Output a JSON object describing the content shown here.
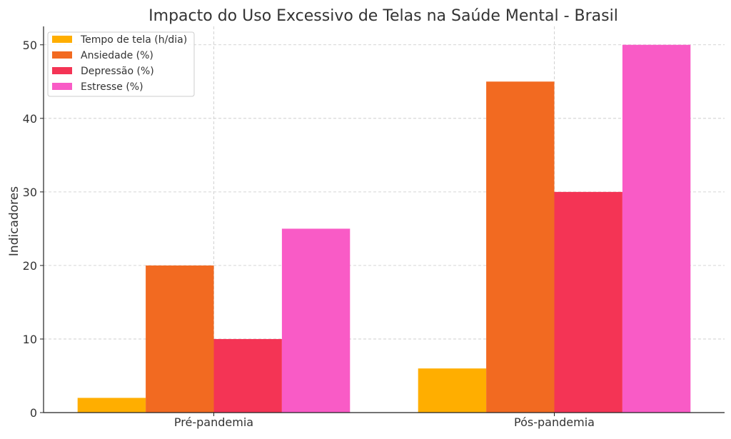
{
  "chart_data": {
    "type": "bar",
    "title": "Impacto do Uso Excessivo de Telas na Saúde Mental - Brasil",
    "xlabel": "",
    "ylabel": "Indicadores",
    "categories": [
      "Pré-pandemia",
      "Pós-pandemia"
    ],
    "series": [
      {
        "name": "Tempo de tela (h/dia)",
        "values": [
          2,
          6
        ],
        "color": "#FFAE00"
      },
      {
        "name": "Ansiedade (%)",
        "values": [
          20,
          45
        ],
        "color": "#F26A21"
      },
      {
        "name": "Depressão (%)",
        "values": [
          10,
          30
        ],
        "color": "#F43455"
      },
      {
        "name": "Estresse (%)",
        "values": [
          25,
          50
        ],
        "color": "#F95BC6"
      }
    ],
    "ylim": [
      0,
      52.5
    ],
    "yticks": [
      0,
      10,
      20,
      30,
      40,
      50
    ],
    "grid": true,
    "legend_position": "top-left"
  }
}
